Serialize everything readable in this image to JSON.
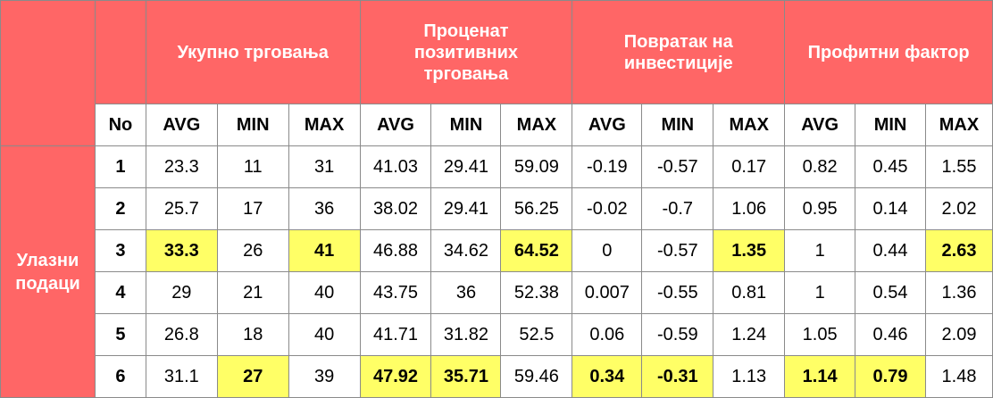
{
  "group_headers": [
    "Укупно трговања",
    "Проценат позитивних трговања",
    "Повратак на инвестиције",
    "Профитни фактор"
  ],
  "no_label": "No",
  "sub_headers": [
    "AVG",
    "MIN",
    "MAX",
    "AVG",
    "MIN",
    "MAX",
    "AVG",
    "MIN",
    "MAX",
    "AVG",
    "MIN",
    "MAX"
  ],
  "side_label": "Улазни подаци",
  "highlight_color": "#ffff66",
  "header_color": "#ff6666",
  "rows": [
    {
      "no": "1",
      "cells": [
        {
          "v": "23.3",
          "hl": false
        },
        {
          "v": "11",
          "hl": false
        },
        {
          "v": "31",
          "hl": false
        },
        {
          "v": "41.03",
          "hl": false
        },
        {
          "v": "29.41",
          "hl": false
        },
        {
          "v": "59.09",
          "hl": false
        },
        {
          "v": "-0.19",
          "hl": false
        },
        {
          "v": "-0.57",
          "hl": false
        },
        {
          "v": "0.17",
          "hl": false
        },
        {
          "v": "0.82",
          "hl": false
        },
        {
          "v": "0.45",
          "hl": false
        },
        {
          "v": "1.55",
          "hl": false
        }
      ]
    },
    {
      "no": "2",
      "cells": [
        {
          "v": "25.7",
          "hl": false
        },
        {
          "v": "17",
          "hl": false
        },
        {
          "v": "36",
          "hl": false
        },
        {
          "v": "38.02",
          "hl": false
        },
        {
          "v": "29.41",
          "hl": false
        },
        {
          "v": "56.25",
          "hl": false
        },
        {
          "v": "-0.02",
          "hl": false
        },
        {
          "v": "-0.7",
          "hl": false
        },
        {
          "v": "1.06",
          "hl": false
        },
        {
          "v": "0.95",
          "hl": false
        },
        {
          "v": "0.14",
          "hl": false
        },
        {
          "v": "2.02",
          "hl": false
        }
      ]
    },
    {
      "no": "3",
      "cells": [
        {
          "v": "33.3",
          "hl": true
        },
        {
          "v": "26",
          "hl": false
        },
        {
          "v": "41",
          "hl": true
        },
        {
          "v": "46.88",
          "hl": false
        },
        {
          "v": "34.62",
          "hl": false
        },
        {
          "v": "64.52",
          "hl": true
        },
        {
          "v": "0",
          "hl": false
        },
        {
          "v": "-0.57",
          "hl": false
        },
        {
          "v": "1.35",
          "hl": true
        },
        {
          "v": "1",
          "hl": false
        },
        {
          "v": "0.44",
          "hl": false
        },
        {
          "v": "2.63",
          "hl": true
        }
      ]
    },
    {
      "no": "4",
      "cells": [
        {
          "v": "29",
          "hl": false
        },
        {
          "v": "21",
          "hl": false
        },
        {
          "v": "40",
          "hl": false
        },
        {
          "v": "43.75",
          "hl": false
        },
        {
          "v": "36",
          "hl": false
        },
        {
          "v": "52.38",
          "hl": false
        },
        {
          "v": "0.007",
          "hl": false
        },
        {
          "v": "-0.55",
          "hl": false
        },
        {
          "v": "0.81",
          "hl": false
        },
        {
          "v": "1",
          "hl": false
        },
        {
          "v": "0.54",
          "hl": false
        },
        {
          "v": "1.36",
          "hl": false
        }
      ]
    },
    {
      "no": "5",
      "cells": [
        {
          "v": "26.8",
          "hl": false
        },
        {
          "v": "18",
          "hl": false
        },
        {
          "v": "40",
          "hl": false
        },
        {
          "v": "41.71",
          "hl": false
        },
        {
          "v": "31.82",
          "hl": false
        },
        {
          "v": "52.5",
          "hl": false
        },
        {
          "v": "0.06",
          "hl": false
        },
        {
          "v": "-0.59",
          "hl": false
        },
        {
          "v": "1.24",
          "hl": false
        },
        {
          "v": "1.05",
          "hl": false
        },
        {
          "v": "0.46",
          "hl": false
        },
        {
          "v": "2.09",
          "hl": false
        }
      ]
    },
    {
      "no": "6",
      "cells": [
        {
          "v": "31.1",
          "hl": false
        },
        {
          "v": "27",
          "hl": true
        },
        {
          "v": "39",
          "hl": false
        },
        {
          "v": "47.92",
          "hl": true
        },
        {
          "v": "35.71",
          "hl": true
        },
        {
          "v": "59.46",
          "hl": false
        },
        {
          "v": "0.34",
          "hl": true
        },
        {
          "v": "-0.31",
          "hl": true
        },
        {
          "v": "1.13",
          "hl": false
        },
        {
          "v": "1.14",
          "hl": true
        },
        {
          "v": "0.79",
          "hl": true
        },
        {
          "v": "1.48",
          "hl": false
        }
      ]
    }
  ]
}
